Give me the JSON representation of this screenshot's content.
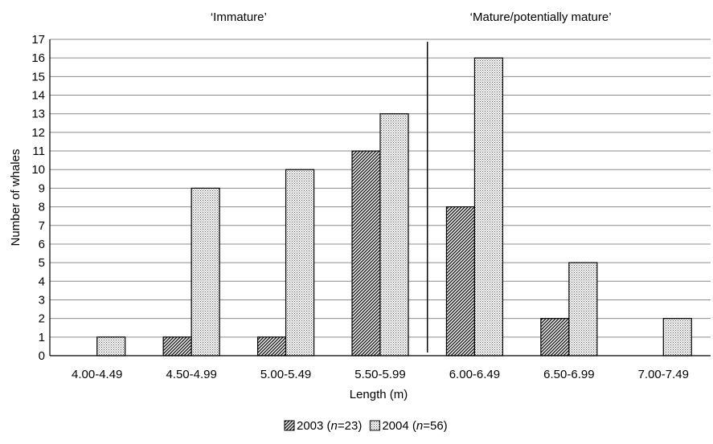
{
  "chart_data": {
    "type": "bar",
    "title": "",
    "xlabel": "Length (m)",
    "ylabel": "Number of whales",
    "ylim": [
      0,
      17
    ],
    "yticks": [
      0,
      1,
      2,
      3,
      4,
      5,
      6,
      7,
      8,
      9,
      10,
      11,
      12,
      13,
      14,
      15,
      16,
      17
    ],
    "grid": true,
    "legend_position": "bottom",
    "categories": [
      "4.00-4.49",
      "4.50-4.99",
      "5.00-5.49",
      "5.50-5.99",
      "6.00-6.49",
      "6.50-6.99",
      "7.00-7.49"
    ],
    "series": [
      {
        "name": "2003",
        "n_label": "n",
        "n_value": "=23)",
        "prefix": " (",
        "values": [
          0,
          1,
          1,
          11,
          8,
          2,
          0
        ],
        "pattern": "diagonal-hatch",
        "color": "#333333"
      },
      {
        "name": "2004",
        "n_label": "n",
        "n_value": "=56)",
        "prefix": " (",
        "values": [
          1,
          9,
          10,
          13,
          16,
          5,
          2
        ],
        "pattern": "dots",
        "color": "#dddddd"
      }
    ],
    "annotations": [
      {
        "text": "‘Immature’"
      },
      {
        "text": "‘Mature/potentially mature’"
      }
    ],
    "divider_between_categories": [
      "5.50-5.99",
      "6.00-6.49"
    ]
  }
}
